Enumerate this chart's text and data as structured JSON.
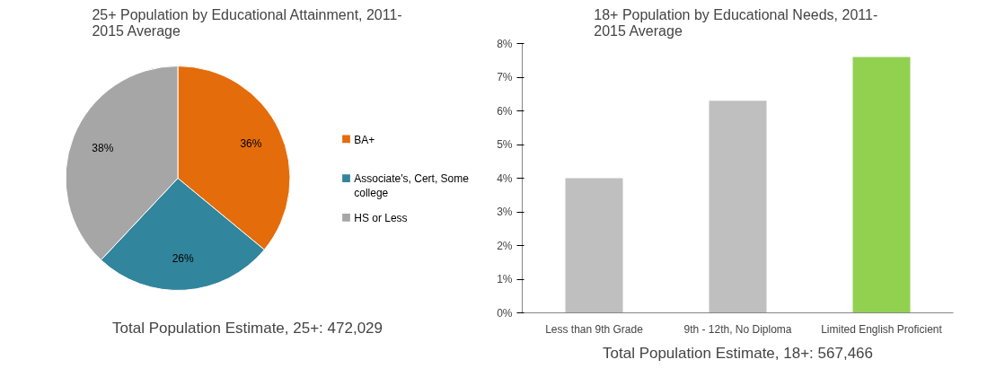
{
  "chart_data": [
    {
      "type": "pie",
      "title": "25+ Population by Educational Attainment, 2011-\n2015 Average",
      "categories": [
        "BA+",
        "Associate's, Cert, Some\ncollege",
        "HS or Less"
      ],
      "values": [
        36,
        26,
        38
      ],
      "colors": [
        "#e46c0a",
        "#31859c",
        "#a6a6a6"
      ],
      "value_labels": [
        "36%",
        "26%",
        "38%"
      ],
      "legend": "right",
      "annotations": [
        "Total Population Estimate, 25+: 472,029"
      ]
    },
    {
      "type": "bar",
      "title": "18+ Population by Educational Needs,  2011-\n2015 Average",
      "categories": [
        "Less than 9th Grade",
        "9th - 12th, No Diploma",
        "Limited English Proficient"
      ],
      "values": [
        4.0,
        6.3,
        7.6
      ],
      "colors": [
        "#bfbfbf",
        "#bfbfbf",
        "#92d050"
      ],
      "ylim": [
        0,
        8
      ],
      "yticks": [
        {
          "value": 0,
          "label": "0%"
        },
        {
          "value": 1,
          "label": "1%"
        },
        {
          "value": 2,
          "label": "2%"
        },
        {
          "value": 3,
          "label": "3%"
        },
        {
          "value": 4,
          "label": "4%"
        },
        {
          "value": 5,
          "label": "5%"
        },
        {
          "value": 6,
          "label": "6%"
        },
        {
          "value": 7,
          "label": "7%"
        },
        {
          "value": 8,
          "label": "8%"
        }
      ],
      "grid": false,
      "legend": false,
      "annotations": [
        "Total Population Estimate, 18+: 567,466"
      ]
    }
  ]
}
